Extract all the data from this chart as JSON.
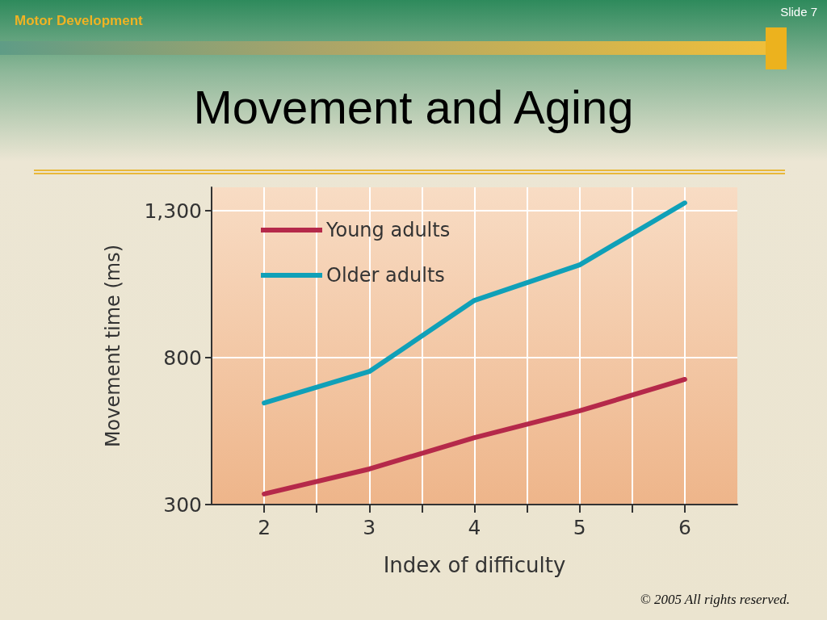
{
  "chart_data": {
    "type": "line",
    "title": "Movement and Aging",
    "xlabel": "Index of difficulty",
    "ylabel": "Movement time (ms)",
    "annotations": [
      "Motor Development",
      "Slide 7",
      "© 2005 All rights reserved."
    ],
    "x": [
      2,
      3,
      4,
      5,
      6
    ],
    "series": [
      {
        "name": "Young adults",
        "color": "#b5294a",
        "values": [
          336,
          421,
          528,
          619,
          726
        ]
      },
      {
        "name": "Older adults",
        "color": "#10a0b8",
        "values": [
          646,
          753,
          995,
          1116,
          1327
        ]
      }
    ],
    "xlim": [
      1.5,
      6.5
    ],
    "xticks": [
      2,
      {
        "value": 2.5,
        "label": null
      },
      3,
      {
        "value": 3.5,
        "label": null
      },
      4,
      {
        "value": 4.5,
        "label": null
      },
      5,
      {
        "value": 5.5,
        "label": null
      },
      6
    ],
    "ylim": [
      300,
      1380
    ],
    "yticks": [
      300,
      800,
      {
        "value": 1300,
        "label": "1,300"
      }
    ],
    "grid": true,
    "legend": "top left",
    "marker": "none",
    "line_style": "solid"
  }
}
